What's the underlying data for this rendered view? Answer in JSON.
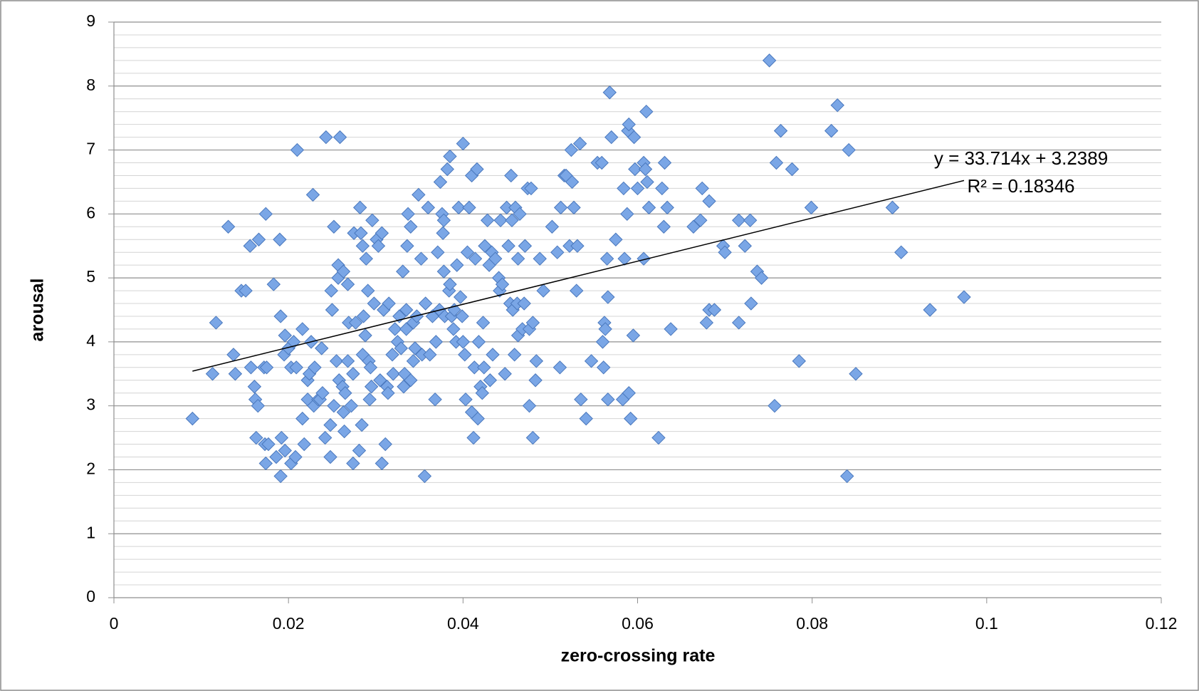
{
  "chart_data": {
    "type": "scatter",
    "xlabel": "zero-crossing rate",
    "ylabel": "arousal",
    "xlim": [
      0,
      0.12
    ],
    "xticks": [
      0,
      0.02,
      0.04,
      0.06,
      0.08,
      0.1,
      0.12
    ],
    "ylim": [
      0,
      9
    ],
    "yticks": [
      0,
      1,
      2,
      3,
      4,
      5,
      6,
      7,
      8,
      9
    ],
    "yminorticks": [
      0.2,
      0.4,
      0.6,
      0.8,
      1.2,
      1.4,
      1.6,
      1.8,
      2.2,
      2.4,
      2.6,
      2.8,
      3.2,
      3.4,
      3.6,
      3.8,
      4.2,
      4.4,
      4.6,
      4.8,
      5.2,
      5.4,
      5.6,
      5.8,
      6.2,
      6.4,
      6.6,
      6.8,
      7.2,
      7.4,
      7.6,
      7.8,
      8.2,
      8.4,
      8.6,
      8.8
    ],
    "grid": true,
    "color": "#7aa6e6",
    "trendline": {
      "slope": 33.714,
      "intercept": 3.2389,
      "equation": "y = 33.714x + 3.2389",
      "r2": "R² = 0.18346"
    },
    "x": [
      0.009,
      0.0113,
      0.0117,
      0.0131,
      0.0137,
      0.0139,
      0.0146,
      0.0151,
      0.0156,
      0.0157,
      0.0161,
      0.0162,
      0.0163,
      0.0165,
      0.0166,
      0.0172,
      0.0174,
      0.0173,
      0.0174,
      0.0175,
      0.0177,
      0.0183,
      0.0186,
      0.019,
      0.0191,
      0.0191,
      0.0192,
      0.0195,
      0.0196,
      0.0196,
      0.02,
      0.0203,
      0.0203,
      0.0206,
      0.0208,
      0.0209,
      0.021,
      0.0216,
      0.0216,
      0.0218,
      0.0222,
      0.0222,
      0.0224,
      0.0226,
      0.0228,
      0.0229,
      0.023,
      0.0234,
      0.0236,
      0.0238,
      0.0239,
      0.0242,
      0.0243,
      0.0248,
      0.0248,
      0.0249,
      0.025,
      0.0252,
      0.0252,
      0.0255,
      0.0257,
      0.0257,
      0.0258,
      0.0259,
      0.0262,
      0.0263,
      0.0263,
      0.0264,
      0.0265,
      0.0268,
      0.0268,
      0.0269,
      0.0272,
      0.0274,
      0.0274,
      0.0275,
      0.0277,
      0.0281,
      0.0282,
      0.0283,
      0.0284,
      0.0285,
      0.0285,
      0.0286,
      0.0288,
      0.0289,
      0.0291,
      0.0292,
      0.0293,
      0.0294,
      0.0295,
      0.0296,
      0.0298,
      0.0301,
      0.0303,
      0.0305,
      0.0307,
      0.0307,
      0.0309,
      0.0311,
      0.0313,
      0.0314,
      0.0315,
      0.0319,
      0.032,
      0.0322,
      0.0325,
      0.0327,
      0.0329,
      0.0331,
      0.0332,
      0.0333,
      0.0335,
      0.0335,
      0.0336,
      0.0337,
      0.034,
      0.034,
      0.0343,
      0.0343,
      0.0345,
      0.0347,
      0.0349,
      0.0352,
      0.0353,
      0.0356,
      0.0357,
      0.036,
      0.0362,
      0.0365,
      0.0368,
      0.0369,
      0.0371,
      0.0373,
      0.0374,
      0.0376,
      0.0377,
      0.0378,
      0.0378,
      0.0379,
      0.0382,
      0.0384,
      0.0385,
      0.0385,
      0.0387,
      0.0389,
      0.039,
      0.0392,
      0.0393,
      0.0395,
      0.0397,
      0.0399,
      0.04,
      0.04,
      0.0402,
      0.0403,
      0.0405,
      0.0407,
      0.041,
      0.041,
      0.0412,
      0.0413,
      0.0414,
      0.0416,
      0.0417,
      0.0418,
      0.042,
      0.0422,
      0.0423,
      0.0424,
      0.0425,
      0.0428,
      0.043,
      0.0431,
      0.0433,
      0.0434,
      0.0437,
      0.0441,
      0.0442,
      0.0443,
      0.0445,
      0.0448,
      0.045,
      0.0452,
      0.0454,
      0.0455,
      0.0456,
      0.0457,
      0.0459,
      0.046,
      0.0462,
      0.0463,
      0.0463,
      0.0465,
      0.0468,
      0.047,
      0.0471,
      0.0474,
      0.0476,
      0.0476,
      0.0478,
      0.048,
      0.048,
      0.0483,
      0.0484,
      0.0488,
      0.0492,
      0.0502,
      0.0508,
      0.0511,
      0.0512,
      0.0516,
      0.0518,
      0.0522,
      0.0524,
      0.0525,
      0.0527,
      0.053,
      0.0531,
      0.0534,
      0.0535,
      0.0541,
      0.0547,
      0.0554,
      0.0559,
      0.056,
      0.0561,
      0.0562,
      0.0563,
      0.0565,
      0.0566,
      0.0566,
      0.0568,
      0.057,
      0.0575,
      0.0583,
      0.0584,
      0.0585,
      0.0588,
      0.0589,
      0.059,
      0.059,
      0.0592,
      0.0595,
      0.0596,
      0.0597,
      0.06,
      0.0607,
      0.0607,
      0.0609,
      0.061,
      0.0611,
      0.0613,
      0.0624,
      0.0628,
      0.063,
      0.0631,
      0.0634,
      0.0638,
      0.0664,
      0.0672,
      0.0674,
      0.0679,
      0.0682,
      0.0682,
      0.0688,
      0.0698,
      0.07,
      0.0716,
      0.0716,
      0.0723,
      0.0729,
      0.073,
      0.0737,
      0.0742,
      0.0751,
      0.0757,
      0.0759,
      0.0764,
      0.0777,
      0.0785,
      0.0799,
      0.0822,
      0.0829,
      0.084,
      0.0842,
      0.085,
      0.0892,
      0.0902,
      0.0935,
      0.0974
    ],
    "values": [
      2.8,
      3.5,
      4.3,
      5.8,
      3.8,
      3.5,
      4.8,
      4.8,
      5.5,
      3.6,
      3.3,
      3.1,
      2.5,
      3.0,
      5.6,
      3.6,
      6.0,
      2.4,
      2.1,
      3.6,
      2.4,
      4.9,
      2.2,
      5.6,
      1.9,
      4.4,
      2.5,
      3.8,
      4.1,
      2.3,
      3.9,
      2.1,
      3.6,
      4.0,
      2.2,
      3.6,
      7.0,
      4.2,
      2.8,
      2.4,
      3.4,
      3.1,
      3.5,
      4.0,
      6.3,
      3.0,
      3.6,
      3.1,
      3.1,
      3.9,
      3.2,
      2.5,
      7.2,
      2.2,
      2.7,
      4.8,
      4.5,
      3.0,
      5.8,
      3.7,
      5.2,
      5.0,
      3.4,
      7.2,
      3.3,
      5.1,
      2.9,
      2.6,
      3.2,
      3.7,
      4.9,
      4.3,
      3.0,
      3.5,
      2.1,
      5.7,
      4.3,
      2.3,
      6.1,
      5.7,
      2.7,
      5.5,
      3.8,
      4.4,
      4.1,
      5.3,
      4.8,
      3.7,
      3.1,
      3.6,
      3.3,
      5.9,
      4.6,
      5.6,
      5.5,
      3.4,
      5.7,
      2.1,
      4.5,
      2.4,
      3.3,
      3.2,
      4.6,
      3.8,
      3.5,
      4.2,
      4.0,
      4.4,
      3.9,
      5.1,
      3.3,
      3.5,
      4.2,
      4.5,
      5.5,
      6.0,
      3.4,
      5.8,
      3.7,
      4.3,
      3.9,
      4.4,
      6.3,
      5.3,
      3.8,
      1.9,
      4.6,
      6.1,
      3.8,
      4.4,
      3.1,
      4.0,
      5.4,
      4.5,
      6.5,
      6.0,
      5.7,
      5.1,
      5.9,
      4.4,
      6.7,
      4.8,
      4.9,
      6.9,
      4.4,
      4.2,
      4.5,
      4.0,
      5.2,
      6.1,
      4.7,
      4.4,
      7.1,
      4.0,
      3.8,
      3.1,
      5.4,
      6.1,
      2.9,
      6.6,
      2.5,
      3.6,
      5.3,
      6.7,
      2.8,
      4.0,
      3.3,
      3.2,
      4.3,
      3.6,
      5.5,
      5.9,
      5.2,
      3.4,
      5.4,
      3.8,
      5.3,
      5.0,
      4.8,
      5.9,
      4.9,
      3.5,
      6.1,
      5.5,
      4.6,
      6.6,
      5.9,
      4.5,
      3.8,
      6.1,
      4.6,
      5.3,
      4.1,
      6.0,
      4.2,
      4.6,
      5.5,
      6.4,
      3.0,
      4.2,
      6.4,
      4.3,
      2.5,
      3.4,
      3.7,
      5.3,
      4.8,
      5.8,
      5.4,
      3.6,
      6.1,
      6.6,
      6.6,
      5.5,
      7.0,
      6.5,
      6.1,
      4.8,
      5.5,
      7.1,
      3.1,
      2.8,
      3.7,
      6.8,
      6.8,
      4.0,
      3.6,
      4.3,
      4.2,
      5.3,
      3.1,
      4.7,
      7.9,
      7.2,
      5.6,
      3.1,
      6.4,
      5.3,
      6.0,
      7.3,
      7.4,
      3.2,
      2.8,
      4.1,
      7.2,
      6.7,
      6.4,
      6.8,
      5.3,
      6.7,
      7.6,
      6.5,
      6.1,
      2.5,
      6.4,
      5.8,
      6.8,
      6.1,
      4.2,
      5.8,
      5.9,
      6.4,
      4.3,
      4.5,
      6.2,
      4.5,
      5.5,
      5.4,
      4.3,
      5.9,
      5.5,
      5.9,
      4.6,
      5.1,
      5.0,
      8.4,
      3.0,
      6.8,
      7.3,
      6.7,
      3.7,
      6.1,
      7.3,
      7.7,
      1.9,
      7.0,
      3.5,
      6.1,
      5.4,
      4.5,
      4.7
    ]
  }
}
